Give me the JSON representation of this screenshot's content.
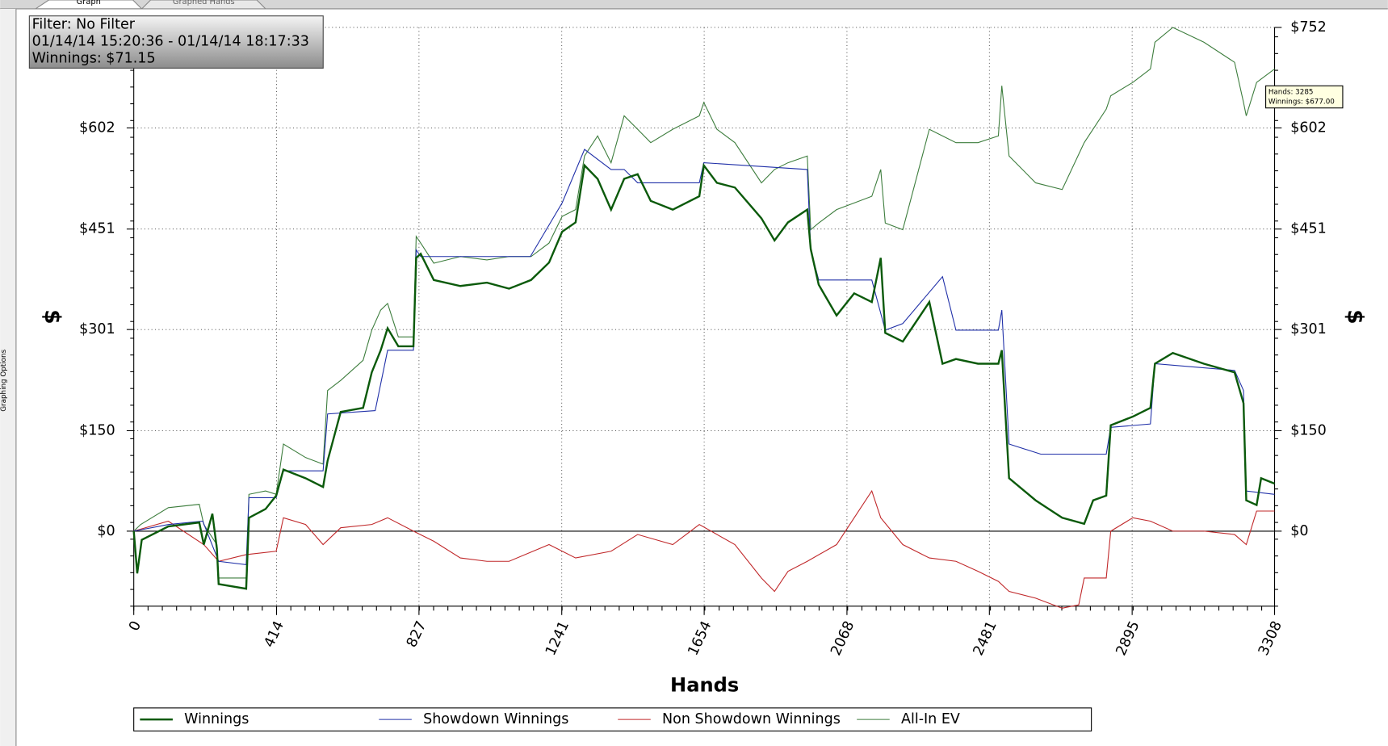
{
  "tabs": [
    "Graph",
    "Graphed Hands"
  ],
  "side_panel": "Graphing Options",
  "chart_data": {
    "type": "line",
    "xlabel": "Hands",
    "ylabel": "$",
    "xlim": [
      0,
      3308
    ],
    "ylim": [
      -112,
      752
    ],
    "xticks": [
      0,
      414,
      827,
      1241,
      1654,
      2068,
      2481,
      2895,
      3308
    ],
    "yticks": [
      {
        "value": 0,
        "label": "$0"
      },
      {
        "value": 150,
        "label": "$150"
      },
      {
        "value": 301,
        "label": "$301"
      },
      {
        "value": 451,
        "label": "$451"
      },
      {
        "value": 602,
        "label": "$602"
      },
      {
        "value": 752,
        "label": "$752"
      }
    ],
    "grid": true,
    "annotations": {
      "info_box": [
        "Filter: No Filter",
        "01/14/14 15:20:36 - 01/14/14 18:17:33",
        "Winnings: $71.15"
      ],
      "tooltip": [
        "Hands: 3285",
        "Winnings: $677.00"
      ]
    },
    "series": [
      {
        "name": "Winnings",
        "color": "#0b5a0b",
        "x": [
          0,
          10,
          23,
          100,
          190,
          203,
          228,
          241,
          246,
          326,
          334,
          382,
          413,
          434,
          498,
          549,
          562,
          600,
          665,
          690,
          716,
          736,
          767,
          811,
          819,
          832,
          870,
          947,
          1024,
          1088,
          1152,
          1204,
          1242,
          1281,
          1307,
          1345,
          1384,
          1422,
          1461,
          1499,
          1563,
          1640,
          1653,
          1691,
          1743,
          1820,
          1858,
          1897,
          1953,
          1963,
          1986,
          2038,
          2089,
          2140,
          2166,
          2179,
          2230,
          2307,
          2345,
          2384,
          2448,
          2507,
          2517,
          2538,
          2615,
          2692,
          2756,
          2782,
          2820,
          2833,
          2897,
          2948,
          2961,
          3013,
          3103,
          3192,
          3218,
          3226,
          3256,
          3269,
          3308
        ],
        "values": [
          0,
          -63,
          -13,
          7,
          13,
          -20,
          26,
          -26,
          -79,
          -86,
          20,
          33,
          53,
          92,
          79,
          66,
          105,
          178,
          184,
          237,
          270,
          303,
          276,
          276,
          408,
          414,
          375,
          366,
          371,
          362,
          375,
          401,
          447,
          461,
          546,
          526,
          480,
          526,
          533,
          493,
          480,
          500,
          546,
          520,
          513,
          467,
          434,
          461,
          480,
          421,
          368,
          322,
          355,
          342,
          408,
          296,
          283,
          342,
          250,
          257,
          250,
          250,
          270,
          79,
          46,
          20,
          11,
          46,
          53,
          158,
          171,
          184,
          250,
          266,
          250,
          237,
          191,
          46,
          39,
          79,
          71
        ]
      },
      {
        "name": "Showdown Winnings",
        "color": "#2030a8",
        "x": [
          0,
          100,
          200,
          246,
          326,
          334,
          413,
          434,
          549,
          562,
          700,
          736,
          811,
          819,
          832,
          1000,
          1150,
          1242,
          1307,
          1384,
          1422,
          1461,
          1640,
          1653,
          1953,
          1963,
          1986,
          2140,
          2179,
          2230,
          2345,
          2384,
          2507,
          2517,
          2538,
          2630,
          2820,
          2833,
          2948,
          2961,
          3192,
          3218,
          3226,
          3308
        ],
        "values": [
          0,
          10,
          15,
          -45,
          -50,
          50,
          50,
          90,
          90,
          175,
          180,
          270,
          270,
          420,
          410,
          410,
          410,
          490,
          570,
          540,
          540,
          520,
          520,
          550,
          540,
          420,
          375,
          375,
          300,
          310,
          380,
          300,
          300,
          330,
          130,
          115,
          115,
          155,
          160,
          250,
          240,
          210,
          60,
          55
        ]
      },
      {
        "name": "Non Showdown Winnings",
        "color": "#c0282a",
        "x": [
          0,
          100,
          203,
          246,
          326,
          413,
          434,
          498,
          549,
          600,
          690,
          736,
          811,
          870,
          947,
          1024,
          1088,
          1204,
          1281,
          1384,
          1461,
          1563,
          1640,
          1743,
          1820,
          1858,
          1897,
          1953,
          2038,
          2089,
          2140,
          2166,
          2230,
          2307,
          2384,
          2448,
          2507,
          2538,
          2615,
          2692,
          2740,
          2756,
          2820,
          2833,
          2897,
          2948,
          3013,
          3103,
          3192,
          3226,
          3256,
          3308
        ],
        "values": [
          0,
          15,
          -20,
          -45,
          -35,
          -30,
          20,
          10,
          -20,
          5,
          10,
          20,
          0,
          -15,
          -40,
          -45,
          -45,
          -20,
          -40,
          -30,
          -5,
          -20,
          10,
          -20,
          -70,
          -90,
          -60,
          -45,
          -20,
          20,
          60,
          20,
          -20,
          -40,
          -45,
          -60,
          -75,
          -90,
          -100,
          -115,
          -110,
          -70,
          -70,
          0,
          20,
          15,
          0,
          0,
          -5,
          -20,
          30,
          30
        ]
      },
      {
        "name": "All-In EV",
        "color": "#3d7d3d",
        "x": [
          0,
          20,
          100,
          190,
          203,
          241,
          246,
          326,
          334,
          382,
          413,
          434,
          498,
          549,
          562,
          600,
          665,
          690,
          716,
          736,
          767,
          811,
          819,
          832,
          870,
          947,
          1024,
          1088,
          1152,
          1204,
          1242,
          1281,
          1307,
          1345,
          1384,
          1422,
          1461,
          1499,
          1563,
          1640,
          1653,
          1691,
          1743,
          1820,
          1858,
          1897,
          1953,
          1963,
          1986,
          2038,
          2089,
          2140,
          2166,
          2179,
          2230,
          2307,
          2345,
          2384,
          2448,
          2507,
          2517,
          2538,
          2615,
          2692,
          2756,
          2820,
          2833,
          2897,
          2948,
          2961,
          3013,
          3103,
          3192,
          3218,
          3226,
          3256,
          3308
        ],
        "values": [
          0,
          10,
          35,
          40,
          10,
          -20,
          -70,
          -70,
          55,
          60,
          55,
          130,
          110,
          100,
          210,
          225,
          255,
          300,
          330,
          340,
          290,
          290,
          440,
          430,
          400,
          410,
          405,
          410,
          410,
          430,
          470,
          480,
          560,
          590,
          550,
          620,
          600,
          580,
          600,
          620,
          640,
          600,
          580,
          520,
          540,
          550,
          560,
          450,
          460,
          480,
          490,
          500,
          540,
          460,
          450,
          600,
          590,
          580,
          580,
          590,
          665,
          560,
          520,
          510,
          580,
          630,
          650,
          670,
          690,
          730,
          752,
          730,
          700,
          640,
          620,
          670,
          690
        ]
      }
    ]
  }
}
